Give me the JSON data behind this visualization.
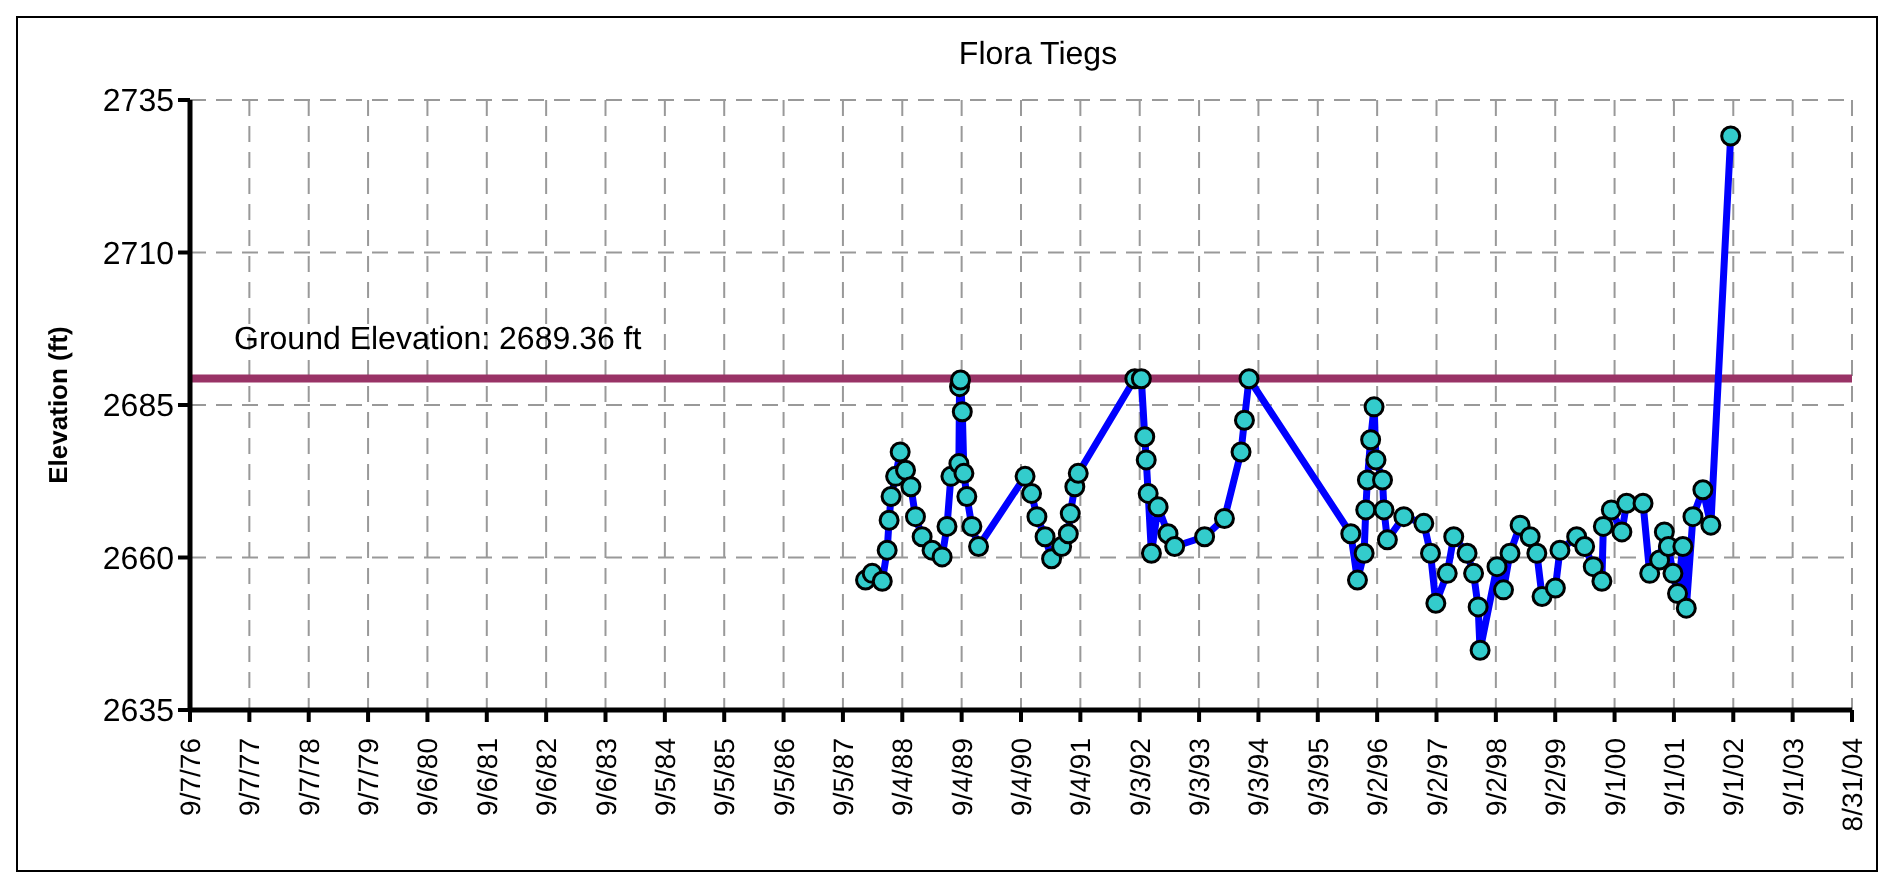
{
  "chart_data": {
    "type": "line",
    "title": "Flora Tiegs",
    "ylabel": "Elevation (ft)",
    "xlim": [
      "1976-09-07",
      "2004-08-31"
    ],
    "xticks": [
      {
        "value": "1976-09-07",
        "label": "9/7/76"
      },
      {
        "value": "1977-09-07",
        "label": "9/7/77"
      },
      {
        "value": "1978-09-07",
        "label": "9/7/78"
      },
      {
        "value": "1979-09-07",
        "label": "9/7/79"
      },
      {
        "value": "1980-09-06",
        "label": "9/6/80"
      },
      {
        "value": "1981-09-06",
        "label": "9/6/81"
      },
      {
        "value": "1982-09-06",
        "label": "9/6/82"
      },
      {
        "value": "1983-09-06",
        "label": "9/6/83"
      },
      {
        "value": "1984-09-05",
        "label": "9/5/84"
      },
      {
        "value": "1985-09-05",
        "label": "9/5/85"
      },
      {
        "value": "1986-09-05",
        "label": "9/5/86"
      },
      {
        "value": "1987-09-05",
        "label": "9/5/87"
      },
      {
        "value": "1988-09-04",
        "label": "9/4/88"
      },
      {
        "value": "1989-09-04",
        "label": "9/4/89"
      },
      {
        "value": "1990-09-04",
        "label": "9/4/90"
      },
      {
        "value": "1991-09-04",
        "label": "9/4/91"
      },
      {
        "value": "1992-09-03",
        "label": "9/3/92"
      },
      {
        "value": "1993-09-03",
        "label": "9/3/93"
      },
      {
        "value": "1994-09-03",
        "label": "9/3/94"
      },
      {
        "value": "1995-09-03",
        "label": "9/3/95"
      },
      {
        "value": "1996-09-02",
        "label": "9/2/96"
      },
      {
        "value": "1997-09-02",
        "label": "9/2/97"
      },
      {
        "value": "1998-09-02",
        "label": "9/2/98"
      },
      {
        "value": "1999-09-02",
        "label": "9/2/99"
      },
      {
        "value": "2000-09-01",
        "label": "9/1/00"
      },
      {
        "value": "2001-09-01",
        "label": "9/1/01"
      },
      {
        "value": "2002-09-01",
        "label": "9/1/02"
      },
      {
        "value": "2003-09-01",
        "label": "9/1/03"
      },
      {
        "value": "2004-08-31",
        "label": "8/31/04"
      }
    ],
    "ylim": [
      2635,
      2735
    ],
    "yticks": [
      2635,
      2660,
      2685,
      2710,
      2735
    ],
    "grid": true,
    "marker": "circle",
    "line_style": "solid",
    "ref_lines": [
      {
        "axis": "y",
        "value": 2689.36,
        "label": "Ground Elevation: 2689.36 ft",
        "color": "#993366"
      }
    ],
    "series": [
      {
        "color": "#0000ff",
        "x": [
          "1988-01-22",
          "1988-03-03",
          "1988-05-04",
          "1988-06-03",
          "1988-06-15",
          "1988-06-27",
          "1988-07-25",
          "1988-08-22",
          "1988-09-24",
          "1988-10-27",
          "1988-11-24",
          "1989-01-04",
          "1989-03-06",
          "1989-05-07",
          "1989-06-06",
          "1989-06-30",
          "1989-08-18",
          "1989-08-22",
          "1989-08-28",
          "1989-09-08",
          "1989-09-18",
          "1989-10-06",
          "1989-11-06",
          "1989-12-17",
          "1990-09-29",
          "1990-11-08",
          "1990-12-11",
          "1991-01-30",
          "1991-03-11",
          "1991-05-12",
          "1991-06-22",
          "1991-07-04",
          "1991-08-01",
          "1991-08-22",
          "1992-08-04",
          "1992-09-13",
          "1992-10-04",
          "1992-10-13",
          "1992-10-25",
          "1992-11-14",
          "1992-12-25",
          "1993-02-24",
          "1993-04-06",
          "1993-10-07",
          "1994-02-06",
          "1994-05-19",
          "1994-06-09",
          "1994-07-07",
          "1996-03-24",
          "1996-05-04",
          "1996-06-14",
          "1996-06-24",
          "1996-07-04",
          "1996-07-24",
          "1996-08-14",
          "1996-08-26",
          "1996-10-05",
          "1996-10-14",
          "1996-11-04",
          "1997-02-13",
          "1997-06-16",
          "1997-07-27",
          "1997-08-29",
          "1997-11-07",
          "1997-12-17",
          "1998-03-09",
          "1998-04-18",
          "1998-05-16",
          "1998-05-28",
          "1998-09-09",
          "1998-10-19",
          "1998-11-28",
          "1999-01-29",
          "1999-04-01",
          "1999-05-12",
          "1999-06-13",
          "1999-09-03",
          "1999-10-01",
          "2000-01-12",
          "2000-03-01",
          "2000-04-23",
          "2000-06-15",
          "2000-06-24",
          "2000-08-12",
          "2000-10-16",
          "2000-11-14",
          "2001-02-23",
          "2001-04-05",
          "2001-06-05",
          "2001-07-04",
          "2001-07-29",
          "2001-08-26",
          "2001-09-23",
          "2001-10-26",
          "2001-11-16",
          "2001-12-27",
          "2002-02-26",
          "2002-04-16",
          "2002-08-16"
        ],
        "values": [
          2656.3,
          2657.4,
          2656.1,
          2661.2,
          2666.1,
          2670.0,
          2673.3,
          2677.3,
          2674.3,
          2671.6,
          2666.7,
          2663.4,
          2661.2,
          2660.1,
          2665.1,
          2673.3,
          2675.4,
          2688.0,
          2689.1,
          2683.9,
          2673.8,
          2670.0,
          2665.1,
          2661.8,
          2673.3,
          2670.5,
          2666.7,
          2663.4,
          2659.8,
          2661.8,
          2663.9,
          2667.2,
          2671.6,
          2673.8,
          2689.3,
          2689.3,
          2679.8,
          2676.0,
          2670.5,
          2660.7,
          2668.3,
          2663.9,
          2661.8,
          2663.4,
          2666.4,
          2677.3,
          2682.5,
          2689.3,
          2663.9,
          2656.3,
          2660.7,
          2667.8,
          2672.7,
          2679.3,
          2684.7,
          2676.0,
          2672.7,
          2667.8,
          2662.9,
          2666.7,
          2665.6,
          2660.7,
          2652.5,
          2657.4,
          2663.4,
          2660.7,
          2657.4,
          2651.9,
          2644.8,
          2658.5,
          2654.7,
          2660.7,
          2665.3,
          2663.4,
          2660.7,
          2653.6,
          2655.0,
          2661.2,
          2663.4,
          2661.8,
          2658.5,
          2656.1,
          2665.1,
          2667.8,
          2664.2,
          2668.9,
          2668.9,
          2657.4,
          2659.6,
          2664.2,
          2661.8,
          2657.4,
          2654.1,
          2661.8,
          2651.7,
          2666.7,
          2671.1,
          2665.3,
          2729.1
        ]
      }
    ]
  }
}
